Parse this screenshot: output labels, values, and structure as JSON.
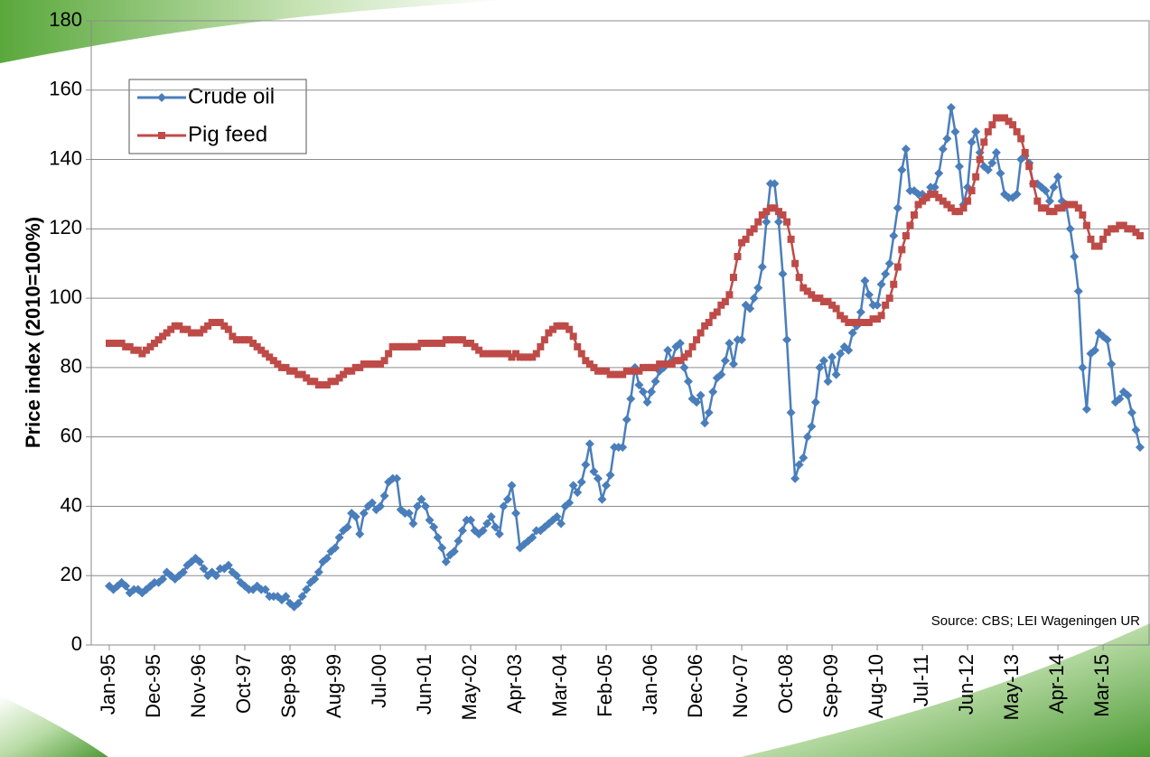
{
  "chart_data": {
    "type": "line",
    "y_label": "Price index (2010=100%)",
    "annotation": "Source: CBS; LEI Wageningen UR",
    "legend": "upper left",
    "grid": true,
    "ylim": [
      0,
      180
    ],
    "yticks": [
      0,
      20,
      40,
      60,
      80,
      100,
      120,
      140,
      160,
      180
    ],
    "categories": [
      "Jan-95",
      null,
      null,
      null,
      null,
      null,
      null,
      null,
      null,
      null,
      null,
      "Dec-95",
      null,
      null,
      null,
      null,
      null,
      null,
      null,
      null,
      null,
      null,
      "Nov-96",
      null,
      null,
      null,
      null,
      null,
      null,
      null,
      null,
      null,
      null,
      "Oct-97",
      null,
      null,
      null,
      null,
      null,
      null,
      null,
      null,
      null,
      null,
      "Sep-98",
      null,
      null,
      null,
      null,
      null,
      null,
      null,
      null,
      null,
      null,
      "Aug-99",
      null,
      null,
      null,
      null,
      null,
      null,
      null,
      null,
      null,
      null,
      "Jul-00",
      null,
      null,
      null,
      null,
      null,
      null,
      null,
      null,
      null,
      null,
      "Jun-01",
      null,
      null,
      null,
      null,
      null,
      null,
      null,
      null,
      null,
      null,
      "May-02",
      null,
      null,
      null,
      null,
      null,
      null,
      null,
      null,
      null,
      null,
      "Apr-03",
      null,
      null,
      null,
      null,
      null,
      null,
      null,
      null,
      null,
      null,
      "Mar-04",
      null,
      null,
      null,
      null,
      null,
      null,
      null,
      null,
      null,
      null,
      "Feb-05",
      null,
      null,
      null,
      null,
      null,
      null,
      null,
      null,
      null,
      null,
      "Jan-06",
      null,
      null,
      null,
      null,
      null,
      null,
      null,
      null,
      null,
      null,
      "Dec-06",
      null,
      null,
      null,
      null,
      null,
      null,
      null,
      null,
      null,
      null,
      "Nov-07",
      null,
      null,
      null,
      null,
      null,
      null,
      null,
      null,
      null,
      null,
      "Oct-08",
      null,
      null,
      null,
      null,
      null,
      null,
      null,
      null,
      null,
      null,
      "Sep-09",
      null,
      null,
      null,
      null,
      null,
      null,
      null,
      null,
      null,
      null,
      "Aug-10",
      null,
      null,
      null,
      null,
      null,
      null,
      null,
      null,
      null,
      null,
      "Jul-11",
      null,
      null,
      null,
      null,
      null,
      null,
      null,
      null,
      null,
      null,
      "Jun-12",
      null,
      null,
      null,
      null,
      null,
      null,
      null,
      null,
      null,
      null,
      "May-13",
      null,
      null,
      null,
      null,
      null,
      null,
      null,
      null,
      null,
      null,
      "Apr-14",
      null,
      null,
      null,
      null,
      null,
      null,
      null,
      null,
      null,
      null,
      "Mar-15",
      null,
      null,
      null,
      null,
      null,
      null,
      null,
      null,
      null
    ],
    "series": [
      {
        "name": "Crude oil",
        "color": "#4a7ebb",
        "marker": "diamond",
        "values": [
          17,
          16,
          17,
          18,
          17,
          15,
          16,
          16,
          15,
          16,
          17,
          18,
          18,
          19,
          21,
          20,
          19,
          20,
          21,
          23,
          24,
          25,
          24,
          22,
          20,
          21,
          20,
          22,
          22,
          23,
          21,
          20,
          18,
          17,
          16,
          16,
          17,
          16,
          16,
          14,
          14,
          14,
          13,
          14,
          12,
          11,
          12,
          14,
          16,
          18,
          19,
          21,
          24,
          25,
          27,
          28,
          31,
          33,
          34,
          38,
          37,
          32,
          38,
          40,
          41,
          39,
          40,
          43,
          47,
          48,
          48,
          39,
          38,
          38,
          35,
          40,
          42,
          40,
          36,
          34,
          31,
          28,
          24,
          26,
          27,
          30,
          33,
          36,
          36,
          33,
          32,
          33,
          35,
          37,
          34,
          32,
          40,
          42,
          46,
          38,
          28,
          29,
          30,
          31,
          33,
          33,
          34,
          35,
          36,
          37,
          35,
          40,
          41,
          46,
          44,
          47,
          52,
          58,
          50,
          48,
          42,
          46,
          49,
          57,
          57,
          57,
          65,
          71,
          80,
          75,
          73,
          70,
          73,
          76,
          79,
          80,
          85,
          82,
          86,
          87,
          80,
          76,
          71,
          70,
          72,
          64,
          67,
          73,
          77,
          78,
          82,
          87,
          81,
          88,
          88,
          98,
          97,
          100,
          103,
          109,
          122,
          133,
          133,
          122,
          107,
          88,
          67,
          48,
          52,
          54,
          60,
          63,
          70,
          80,
          82,
          76,
          83,
          78,
          84,
          86,
          85,
          90,
          92,
          96,
          105,
          101,
          98,
          98,
          104,
          107,
          110,
          118,
          126,
          137,
          143,
          131,
          131,
          130,
          130,
          129,
          132,
          132,
          136,
          143,
          146,
          155,
          148,
          138,
          127,
          132,
          145,
          148,
          142,
          138,
          137,
          139,
          142,
          136,
          130,
          129,
          129,
          130,
          140,
          141,
          139,
          133,
          133,
          132,
          131,
          128,
          132,
          135,
          128,
          127,
          120,
          112,
          102,
          80,
          68,
          84,
          85,
          90,
          89,
          88,
          81,
          70,
          71,
          73,
          72,
          67,
          62,
          57
        ]
      },
      {
        "name": "Pig feed",
        "color": "#be4b48",
        "marker": "square",
        "values": [
          87,
          87,
          87,
          87,
          86,
          86,
          85,
          85,
          84,
          85,
          86,
          87,
          88,
          89,
          90,
          91,
          92,
          92,
          91,
          91,
          90,
          90,
          90,
          91,
          92,
          93,
          93,
          93,
          92,
          91,
          89,
          88,
          88,
          88,
          88,
          87,
          86,
          85,
          84,
          83,
          82,
          81,
          80,
          80,
          79,
          79,
          78,
          78,
          77,
          76,
          76,
          75,
          75,
          75,
          76,
          76,
          77,
          78,
          79,
          79,
          80,
          80,
          81,
          81,
          81,
          81,
          81,
          82,
          84,
          86,
          86,
          86,
          86,
          86,
          86,
          86,
          87,
          87,
          87,
          87,
          87,
          87,
          88,
          88,
          88,
          88,
          88,
          87,
          87,
          86,
          85,
          84,
          84,
          84,
          84,
          84,
          84,
          84,
          83,
          84,
          83,
          83,
          83,
          83,
          84,
          86,
          88,
          90,
          91,
          92,
          92,
          92,
          91,
          89,
          86,
          84,
          82,
          81,
          80,
          79,
          79,
          79,
          78,
          78,
          78,
          78,
          79,
          79,
          79,
          79,
          80,
          80,
          80,
          80,
          81,
          81,
          81,
          81,
          82,
          82,
          83,
          84,
          86,
          88,
          90,
          92,
          93,
          95,
          96,
          98,
          99,
          101,
          106,
          112,
          116,
          117,
          119,
          120,
          122,
          124,
          125,
          126,
          126,
          125,
          124,
          122,
          117,
          110,
          106,
          103,
          102,
          101,
          100,
          100,
          99,
          99,
          98,
          97,
          95,
          94,
          93,
          93,
          93,
          93,
          93,
          93,
          94,
          94,
          95,
          98,
          100,
          104,
          109,
          114,
          118,
          121,
          124,
          127,
          128,
          129,
          130,
          130,
          129,
          128,
          127,
          126,
          125,
          125,
          126,
          128,
          131,
          135,
          140,
          145,
          148,
          150,
          152,
          152,
          152,
          151,
          150,
          148,
          146,
          142,
          138,
          133,
          128,
          126,
          126,
          125,
          125,
          126,
          126,
          127,
          127,
          127,
          126,
          124,
          121,
          117,
          115,
          115,
          117,
          119,
          120,
          120,
          121,
          121,
          120,
          120,
          119,
          118
        ]
      }
    ]
  }
}
